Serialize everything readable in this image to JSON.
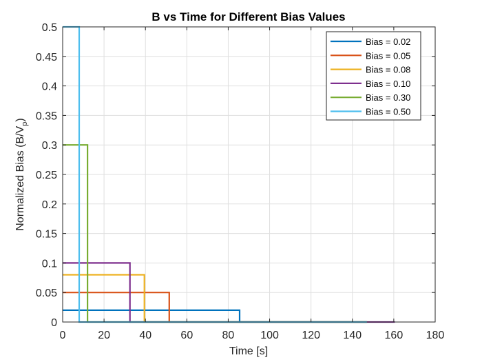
{
  "chart_data": {
    "type": "line",
    "title": "B vs Time for Different Bias Values",
    "xlabel": "Time [s]",
    "ylabel_main": "Normalized Bias (B/V",
    "ylabel_sub": "p",
    "ylabel_close": ")",
    "xlim": [
      0,
      180
    ],
    "ylim": [
      0,
      0.5
    ],
    "xticks": [
      "0",
      "20",
      "40",
      "60",
      "80",
      "100",
      "120",
      "140",
      "160",
      "180"
    ],
    "yticks": [
      "0",
      "0.05",
      "0.1",
      "0.15",
      "0.2",
      "0.25",
      "0.3",
      "0.35",
      "0.4",
      "0.45",
      "0.5"
    ],
    "grid": true,
    "legend_position": "top-right",
    "series": [
      {
        "name": "Bias = 0.02",
        "color": "#0072BD",
        "step_end": 85.5,
        "x": [
          0,
          85.5,
          85.5,
          147
        ],
        "y": [
          0.02,
          0.02,
          0,
          0
        ]
      },
      {
        "name": "Bias = 0.05",
        "color": "#D95319",
        "step_end": 51.5,
        "x": [
          0,
          51.5,
          51.5,
          147
        ],
        "y": [
          0.05,
          0.05,
          0,
          0
        ]
      },
      {
        "name": "Bias = 0.08",
        "color": "#EDB120",
        "step_end": 39.5,
        "x": [
          0,
          39.5,
          39.5,
          147
        ],
        "y": [
          0.08,
          0.08,
          0,
          0
        ]
      },
      {
        "name": "Bias = 0.10",
        "color": "#7E2F8E",
        "step_end": 32.5,
        "x": [
          0,
          32.5,
          32.5,
          160.5
        ],
        "y": [
          0.1,
          0.1,
          0,
          0
        ]
      },
      {
        "name": "Bias = 0.30",
        "color": "#77AC30",
        "step_end": 12,
        "x": [
          0,
          12,
          12,
          147
        ],
        "y": [
          0.3,
          0.3,
          0,
          0
        ]
      },
      {
        "name": "Bias = 0.50",
        "color": "#4DBEEE",
        "step_end": 8,
        "x": [
          0,
          8,
          8,
          147
        ],
        "y": [
          0.5,
          0.5,
          0,
          0
        ]
      }
    ]
  }
}
